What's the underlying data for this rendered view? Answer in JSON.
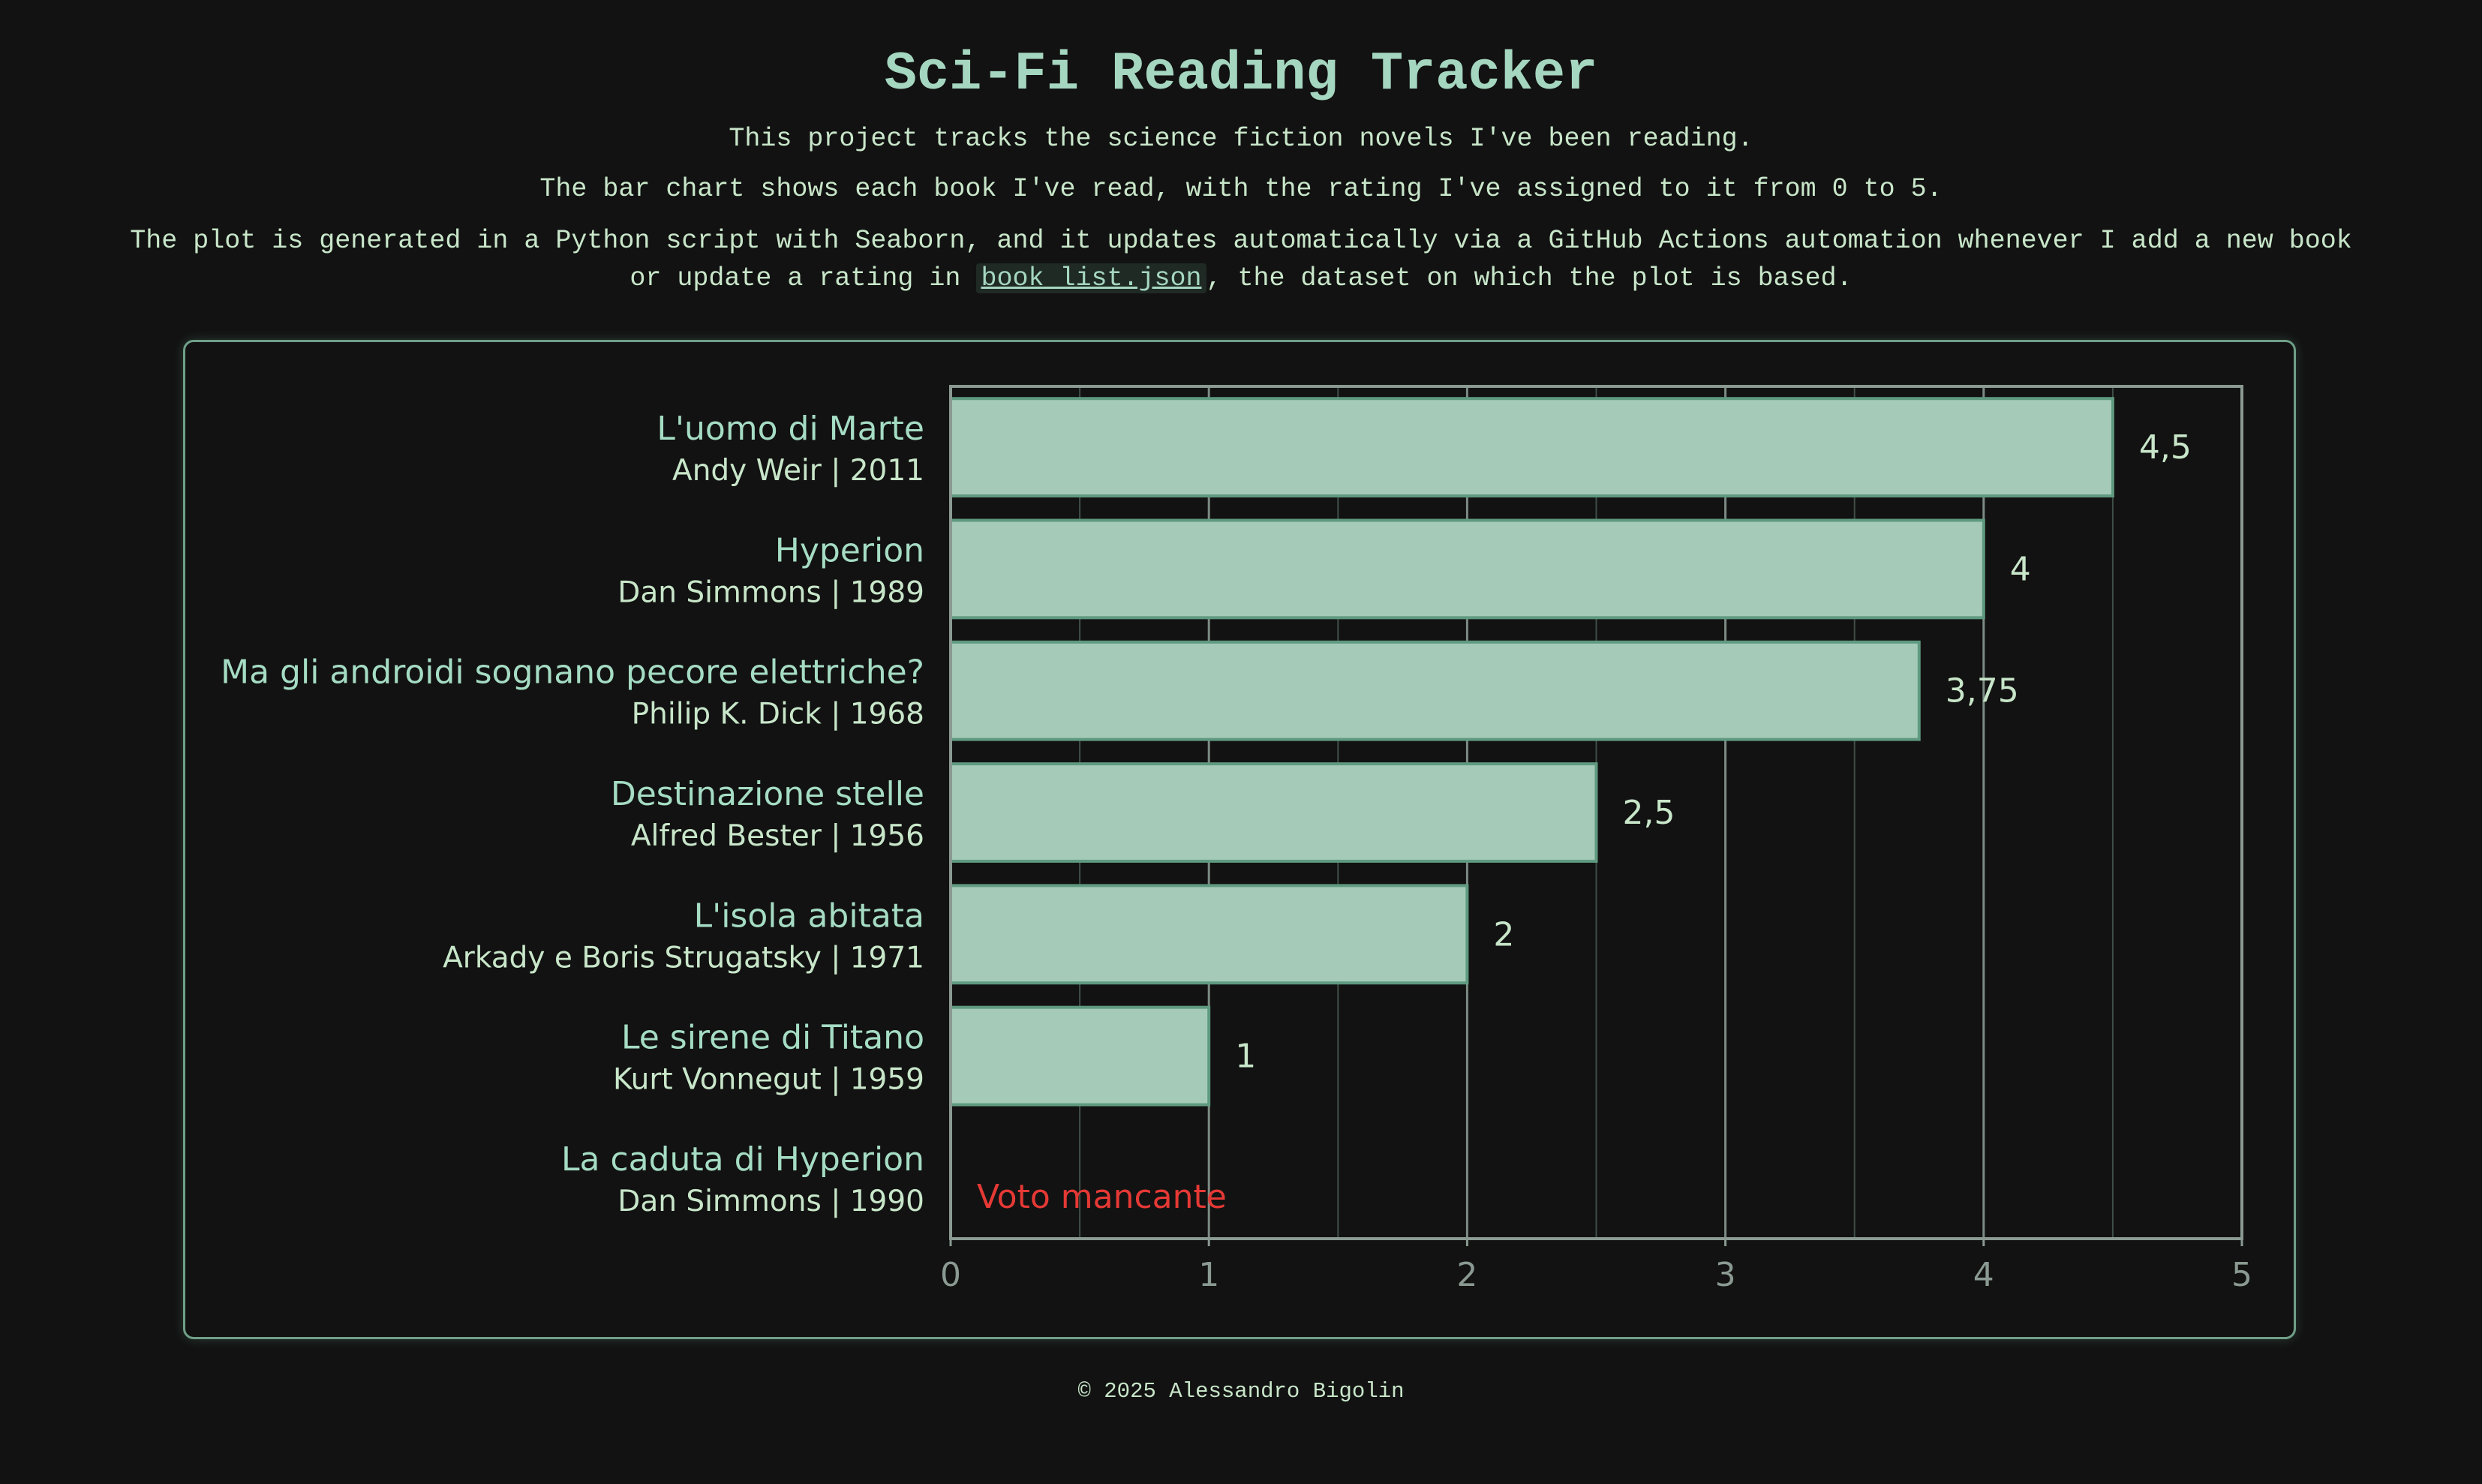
{
  "header": {
    "title": "Sci-Fi Reading Tracker",
    "line1": "This project tracks the science fiction novels I've been reading.",
    "line2": "The bar chart shows each book I've read, with the rating I've assigned to it from 0 to 5.",
    "line3_a": "The plot is generated in a Python script with Seaborn, and it updates automatically via a GitHub Actions automation whenever I add a new book",
    "line3_b_pre": "or update a rating in ",
    "line3_link": "book_list.json",
    "line3_b_post": ", the dataset on which the plot is based."
  },
  "footer": {
    "text": "© 2025 Alessandro Bigolin"
  },
  "colors": {
    "background": "#121212",
    "bar_fill": "#a5cbb8",
    "bar_edge": "#5f9a80",
    "text": "#c8e6c9",
    "label_title": "#a5dcc4",
    "missing": "#e53935",
    "axis": "#8a9a92"
  },
  "chart_data": {
    "type": "bar",
    "orientation": "horizontal",
    "xlim": [
      0,
      5
    ],
    "xticks": [
      "0",
      "1",
      "2",
      "3",
      "4",
      "5"
    ],
    "grid": true,
    "missing_label": "Voto mancante",
    "books": [
      {
        "title": "L'uomo di Marte",
        "author_year": "Andy Weir | 2011",
        "rating": 4.5,
        "value_label": "4,5"
      },
      {
        "title": "Hyperion",
        "author_year": "Dan Simmons | 1989",
        "rating": 4,
        "value_label": "4"
      },
      {
        "title": "Ma gli androidi sognano pecore elettriche?",
        "author_year": "Philip K. Dick | 1968",
        "rating": 3.75,
        "value_label": "3,75"
      },
      {
        "title": "Destinazione stelle",
        "author_year": "Alfred Bester | 1956",
        "rating": 2.5,
        "value_label": "2,5"
      },
      {
        "title": "L'isola abitata",
        "author_year": "Arkady e Boris Strugatsky | 1971",
        "rating": 2,
        "value_label": "2"
      },
      {
        "title": "Le sirene di Titano",
        "author_year": "Kurt Vonnegut | 1959",
        "rating": 1,
        "value_label": "1"
      },
      {
        "title": "La caduta di Hyperion",
        "author_year": "Dan Simmons | 1990",
        "rating": null,
        "value_label": ""
      }
    ]
  }
}
